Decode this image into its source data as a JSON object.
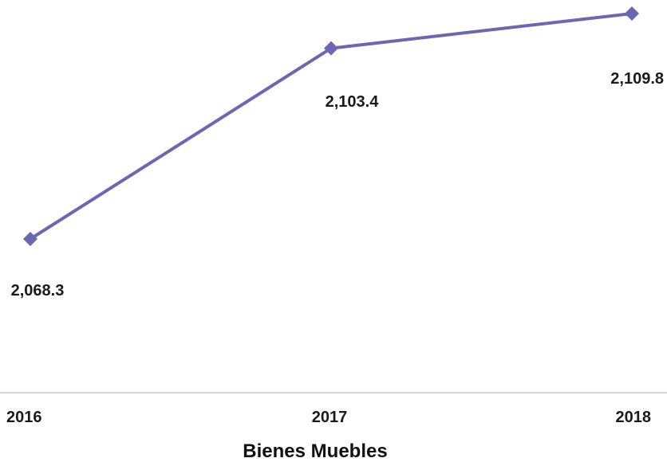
{
  "chart_data": {
    "type": "line",
    "title": "",
    "xlabel": "Bienes Muebles",
    "ylabel": "",
    "categories": [
      "2016",
      "2017",
      "2018"
    ],
    "series": [
      {
        "values": [
          2068.3,
          2103.4,
          2109.8
        ],
        "data_labels": [
          "2,068.3",
          "2,103.4",
          "2,109.8"
        ],
        "color": "#6b67b3",
        "marker": "diamond"
      }
    ],
    "grid": false,
    "legend": "none",
    "axis_line_color": "#c8c8c8"
  }
}
